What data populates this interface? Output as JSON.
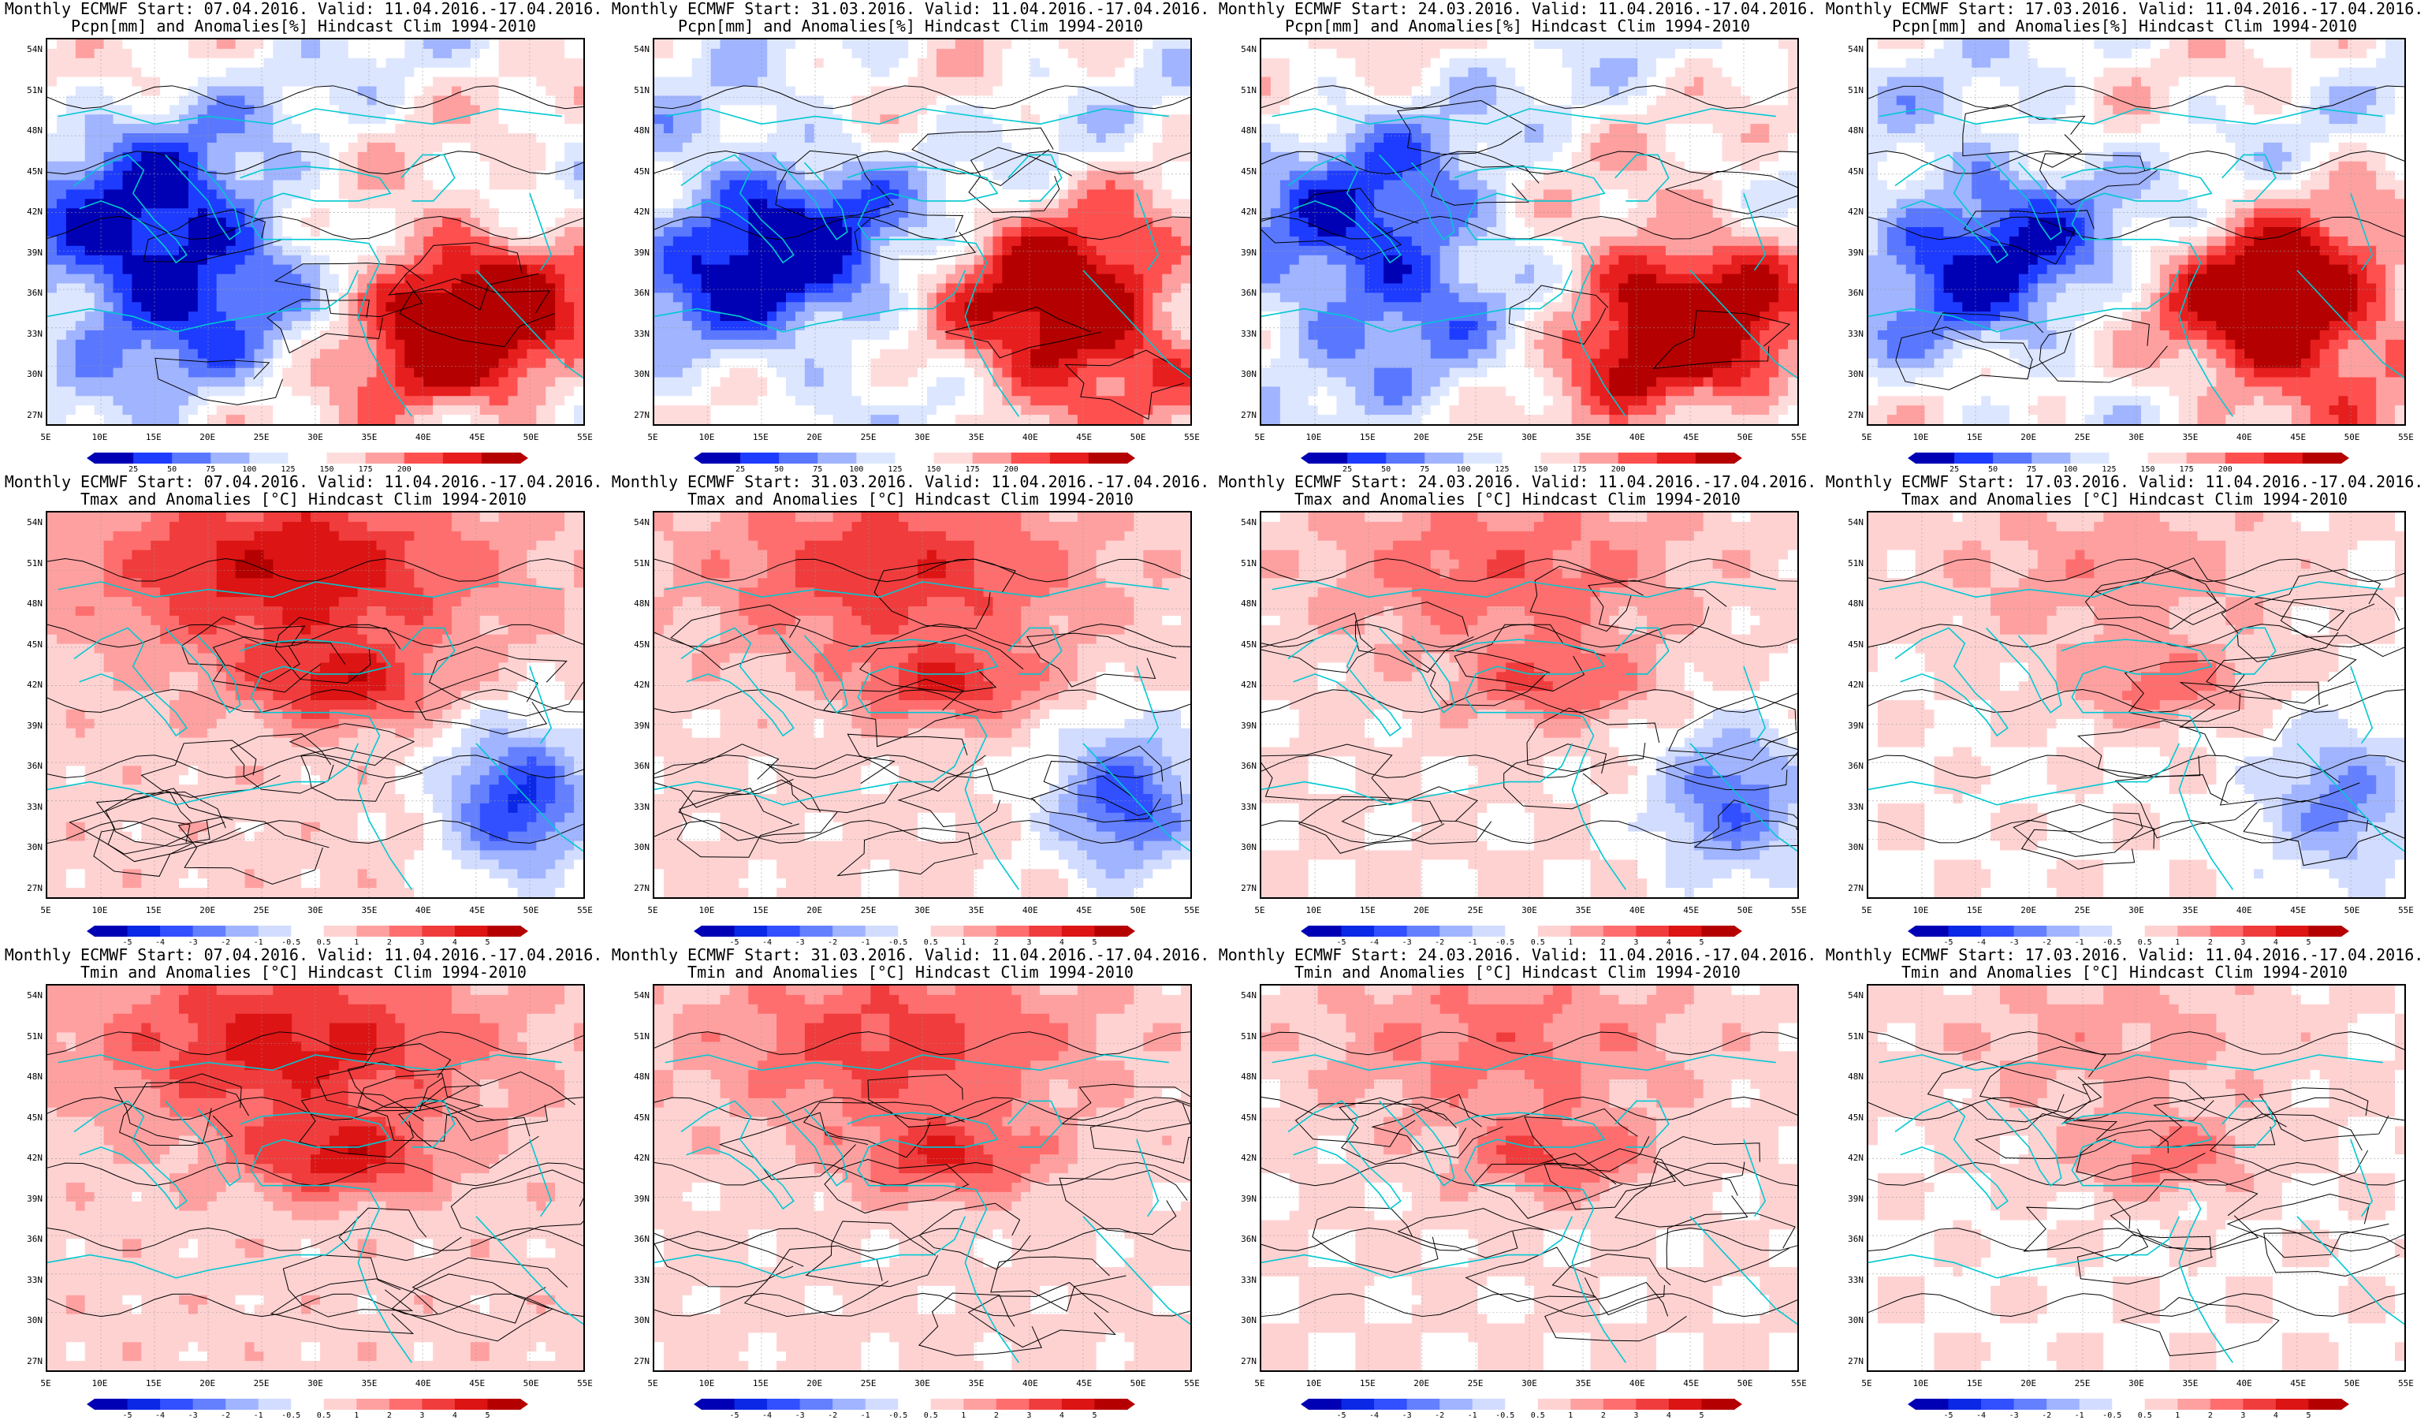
{
  "panels": [
    {
      "title1": "Monthly ECMWF Start: 07.04.2016. Valid: 11.04.2016.-17.04.2016.",
      "title2": "Pcpn[mm] and Anomalies[%] Hindcast Clim 1994-2010",
      "variable": "precipitation",
      "colorbar": "precip"
    },
    {
      "title1": "Monthly ECMWF Start: 31.03.2016. Valid: 11.04.2016.-17.04.2016.",
      "title2": "Pcpn[mm] and Anomalies[%] Hindcast Clim 1994-2010",
      "variable": "precipitation",
      "colorbar": "precip"
    },
    {
      "title1": "Monthly ECMWF Start: 24.03.2016. Valid: 11.04.2016.-17.04.2016.",
      "title2": "Pcpn[mm] and Anomalies[%] Hindcast Clim 1994-2010",
      "variable": "precipitation",
      "colorbar": "precip"
    },
    {
      "title1": "Monthly ECMWF Start: 17.03.2016. Valid: 11.04.2016.-17.04.2016.",
      "title2": "Pcpn[mm] and Anomalies[%] Hindcast Clim 1994-2010",
      "variable": "precipitation",
      "colorbar": "precip"
    },
    {
      "title1": "Monthly ECMWF Start: 07.04.2016. Valid: 11.04.2016.-17.04.2016.",
      "title2": "Tmax and Anomalies [°C] Hindcast Clim 1994-2010",
      "variable": "tmax",
      "colorbar": "temp"
    },
    {
      "title1": "Monthly ECMWF Start: 31.03.2016. Valid: 11.04.2016.-17.04.2016.",
      "title2": "Tmax and Anomalies [°C] Hindcast Clim 1994-2010",
      "variable": "tmax",
      "colorbar": "temp"
    },
    {
      "title1": "Monthly ECMWF Start: 24.03.2016. Valid: 11.04.2016.-17.04.2016.",
      "title2": "Tmax and Anomalies [°C] Hindcast Clim 1994-2010",
      "variable": "tmax",
      "colorbar": "temp"
    },
    {
      "title1": "Monthly ECMWF Start: 17.03.2016. Valid: 11.04.2016.-17.04.2016.",
      "title2": "Tmax and Anomalies [°C] Hindcast Clim 1994-2010",
      "variable": "tmax",
      "colorbar": "temp"
    },
    {
      "title1": "Monthly ECMWF Start: 07.04.2016. Valid: 11.04.2016.-17.04.2016.",
      "title2": "Tmin and Anomalies [°C] Hindcast Clim 1994-2010",
      "variable": "tmin",
      "colorbar": "temp"
    },
    {
      "title1": "Monthly ECMWF Start: 31.03.2016. Valid: 11.04.2016.-17.04.2016.",
      "title2": "Tmin and Anomalies [°C] Hindcast Clim 1994-2010",
      "variable": "tmin",
      "colorbar": "temp"
    },
    {
      "title1": "Monthly ECMWF Start: 24.03.2016. Valid: 11.04.2016.-17.04.2016.",
      "title2": "Tmin and Anomalies [°C] Hindcast Clim 1994-2010",
      "variable": "tmin",
      "colorbar": "temp"
    },
    {
      "title1": "Monthly ECMWF Start: 17.03.2016. Valid: 11.04.2016.-17.04.2016.",
      "title2": "Tmin and Anomalies [°C] Hindcast Clim 1994-2010",
      "variable": "tmin",
      "colorbar": "temp"
    }
  ],
  "axes": {
    "lat_labels": [
      "54N",
      "51N",
      "48N",
      "45N",
      "42N",
      "39N",
      "36N",
      "33N",
      "30N",
      "27N"
    ],
    "lon_labels": [
      "5E",
      "10E",
      "15E",
      "20E",
      "25E",
      "30E",
      "35E",
      "40E",
      "45E",
      "50E",
      "55E"
    ]
  },
  "colorbars": {
    "precip": {
      "labels": [
        "25",
        "50",
        "75",
        "100",
        "125",
        "150",
        "175",
        "200"
      ],
      "colors": [
        "#0000b4",
        "#1e3cff",
        "#5a78ff",
        "#a0b4ff",
        "#dce6ff",
        "#ffffff",
        "#ffdcdc",
        "#ffa0a0",
        "#ff5050",
        "#e61e1e",
        "#b40000"
      ]
    },
    "temp": {
      "labels": [
        "-5",
        "-4",
        "-3",
        "-2",
        "-1",
        "-0.5",
        "0.5",
        "1",
        "2",
        "3",
        "4",
        "5"
      ],
      "colors": [
        "#0000b4",
        "#0a28e6",
        "#3250ff",
        "#6480ff",
        "#a0b4ff",
        "#d2dcff",
        "#ffffff",
        "#ffd2d2",
        "#ffa0a0",
        "#ff6e6e",
        "#f03c3c",
        "#dc1414",
        "#b40000"
      ]
    }
  },
  "colors": {
    "coastline": "#00c8d2",
    "contour": "#000000",
    "grid": "#999999"
  }
}
